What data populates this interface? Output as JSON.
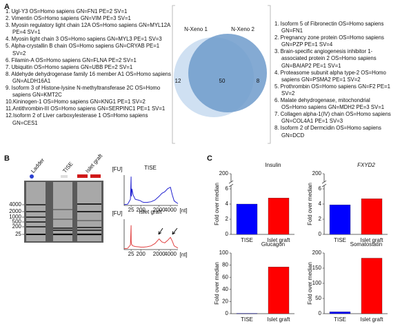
{
  "panel_a": {
    "label": "A",
    "left_list": [
      "1. Ugl-Y3 OS=Homo sapiens GN=FN1 PE=2 SV=1",
      "2. Vimentin OS=Homo sapiens GN=VIM PE=3 SV=1",
      "3. Myosin regulatory light chain 12A OS=Homo sapiens GN=MYL12A PE=4 SV=1",
      "4. Myosin light chain 3 OS=Homo sapiens GN=MYL3 PE=1 SV=3",
      "5. Alpha-crystallin B chain OS=Homo sapiens GN=CRYAB PE=1 SV=2",
      "6. Filamin-A OS=Homo sapiens GN=FLNA PE=2 SV=1",
      "7. Ubiquitin OS=Homo sapiens GN=UBB PE=2 SV=1",
      "8. Aldehyde dehydrogenase family 16 member A1 OS=Homo sapiens GN=ALDH16A1",
      "9. Isoform 3 of Histone-lysine N-methyltransferase 2C OS=Homo sapiens GN=KMT2C",
      "10.Kininogen-1 OS=Homo sapiens GN=KNG1 PE=1 SV=2",
      "11.Antithrombin-III OS=Homo sapiens GN=SERPINC1 PE=1 SV=1",
      "12.Isoform 2 of Liver carboxylesterase 1 OS=Homo sapiens GN=CES1"
    ],
    "right_list": [
      "1. Isoform 5 of Fibronectin OS=Homo sapiens GN=FN1",
      "2. Pregnancy zone protein OS=Homo sapiens GN=PZP PE=1 SV=4",
      "3. Brain-specific angiogenesis inhibitor 1-associated protein 2 OS=Homo sapiens GN=BAIAP2 PE=1 SV=1",
      "4. Proteasome subunit alpha type-2 OS=Homo sapiens GN=PSMA2 PE=1 SV=2",
      "5. Prothrombin OS=Homo sapiens GN=F2 PE=1 SV=2",
      "6. Malate dehydrogenase, mitochondrial OS=Homo sapiens GN=MDH2 PE=3 SV=1",
      "7. Collagen alpha-1(IV) chain OS=Homo sapiens GN=COL4A1 PE=1 SV=3",
      "8. Isoform 2 of Dermcidin OS=Homo sapiens GN=DCD"
    ],
    "venn": {
      "set_1": "N-Xeno 1",
      "set_2": "N-Xeno 2",
      "only_1": "12",
      "both": "50",
      "only_2": "8"
    }
  },
  "panel_b": {
    "label": "B",
    "lanes": [
      "Ladder",
      "TISE",
      "Islet graft"
    ],
    "ladder_sizes": [
      "4000",
      "2000",
      "1000",
      "500",
      "200",
      "25"
    ]
  },
  "panel_c": {
    "label": "C"
  },
  "chart_data": [
    {
      "type": "line",
      "title": "TISE",
      "xlabel": "[nt]",
      "ylabel": "[FU]",
      "color": "#2020d0",
      "x": [
        15,
        20,
        24,
        25,
        26,
        30,
        40,
        60,
        100,
        150,
        200,
        300,
        500,
        800,
        1200,
        1600,
        2000,
        2500,
        3000,
        3500,
        4000,
        4500,
        5000,
        6000
      ],
      "values": [
        3,
        4,
        20,
        95,
        40,
        30,
        55,
        35,
        20,
        18,
        15,
        12,
        10,
        10,
        12,
        18,
        30,
        40,
        45,
        55,
        60,
        35,
        15,
        6
      ],
      "xlim": [
        15,
        6000
      ],
      "xticks": [
        25,
        200,
        2000,
        4000
      ],
      "ylim": [
        0,
        100
      ]
    },
    {
      "type": "line",
      "title": "Islet graft",
      "xlabel": "[nt]",
      "ylabel": "[FU]",
      "color": "#e04040",
      "x": [
        15,
        20,
        24,
        25,
        26,
        30,
        40,
        60,
        100,
        150,
        200,
        300,
        500,
        800,
        1200,
        1600,
        2000,
        2500,
        3000,
        3500,
        4000,
        4500,
        5000,
        6000
      ],
      "values": [
        3,
        4,
        15,
        80,
        30,
        20,
        15,
        12,
        10,
        9,
        8,
        8,
        8,
        9,
        12,
        20,
        35,
        25,
        22,
        30,
        40,
        28,
        12,
        5
      ],
      "xlim": [
        15,
        6000
      ],
      "xticks": [
        25,
        200,
        2000,
        4000
      ],
      "ylim": [
        0,
        100
      ]
    },
    {
      "type": "bar",
      "title": "Insulin",
      "ylabel": "Fold over median",
      "categories": [
        "TISE",
        "Islet graft"
      ],
      "values": [
        4.0,
        4.8
      ],
      "colors": [
        "#0000ff",
        "#ff0000"
      ],
      "ylim": [
        0,
        200
      ],
      "yticks": [
        0,
        2,
        4,
        6,
        200
      ],
      "axis_break": true
    },
    {
      "type": "bar",
      "title": "FXYD2",
      "title_style": "italic",
      "ylabel": "Fold over median",
      "categories": [
        "TISE",
        "Islet graft"
      ],
      "values": [
        3.9,
        4.7
      ],
      "colors": [
        "#0000ff",
        "#ff0000"
      ],
      "ylim": [
        0,
        200
      ],
      "yticks": [
        0,
        2,
        4,
        6,
        200
      ],
      "axis_break": true
    },
    {
      "type": "bar",
      "title": "Glucagon",
      "ylabel": "Fold over median",
      "categories": [
        "TISE",
        "Islet graft"
      ],
      "values": [
        0.5,
        77
      ],
      "colors": [
        "#0000ff",
        "#ff0000"
      ],
      "ylim": [
        0,
        100
      ],
      "yticks": [
        0,
        20,
        40,
        60,
        80,
        100
      ]
    },
    {
      "type": "bar",
      "title": "Somatostatin",
      "ylabel": "Fold over median",
      "categories": [
        "TISE",
        "Islet graft"
      ],
      "values": [
        6,
        183
      ],
      "colors": [
        "#0000ff",
        "#ff0000"
      ],
      "ylim": [
        0,
        200
      ],
      "yticks": [
        0,
        50,
        100,
        150,
        200
      ]
    }
  ]
}
